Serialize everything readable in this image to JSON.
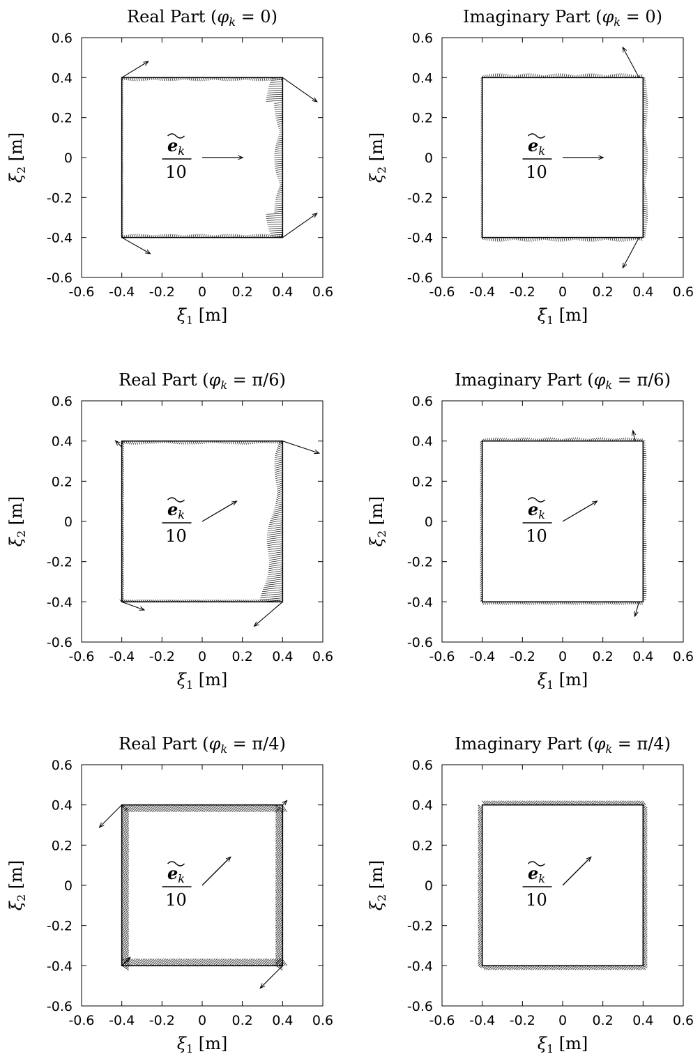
{
  "chart_data": [
    {
      "type": "quiver",
      "title_prefix": "Real Part (",
      "title_phi": "φ",
      "title_sub": "k",
      "title_eq": " = 0)",
      "xlabel_sym": "ξ",
      "xlabel_sub": "1",
      "xlabel_unit": " [m]",
      "ylabel_sym": "ξ",
      "ylabel_sub": "2",
      "ylabel_unit": " [m]",
      "xlim": [
        -0.6,
        0.6
      ],
      "ylim": [
        -0.6,
        0.6
      ],
      "xticks": [
        "-0.6",
        "-0.4",
        "-0.2",
        "0",
        "0.2",
        "0.4",
        "0.6"
      ],
      "yticks": [
        "-0.6",
        "-0.4",
        "-0.2",
        "0",
        "0.2",
        "0.4",
        "0.6"
      ],
      "annotation_top": "e",
      "annotation_sub": "k",
      "annotation_bottom": "10",
      "incident_arrow": {
        "x1": 0.0,
        "y1": 0.0,
        "x2": 0.2,
        "y2": 0.0
      },
      "boundary": {
        "x": [
          -0.4,
          0.4
        ],
        "y": [
          -0.4,
          0.4
        ]
      },
      "corner_arrows": [
        {
          "x1": -0.4,
          "y1": 0.4,
          "x2": -0.27,
          "y2": 0.48
        },
        {
          "x1": 0.4,
          "y1": 0.4,
          "x2": 0.57,
          "y2": 0.28
        },
        {
          "x1": 0.4,
          "y1": -0.4,
          "x2": 0.57,
          "y2": -0.28
        },
        {
          "x1": -0.4,
          "y1": -0.4,
          "x2": -0.26,
          "y2": -0.48
        }
      ],
      "edge_style": "real0"
    },
    {
      "type": "quiver",
      "title_prefix": "Imaginary Part (",
      "title_phi": "φ",
      "title_sub": "k",
      "title_eq": " = 0)",
      "xlabel_sym": "ξ",
      "xlabel_sub": "1",
      "xlabel_unit": " [m]",
      "ylabel_sym": "ξ",
      "ylabel_sub": "2",
      "ylabel_unit": " [m]",
      "xlim": [
        -0.6,
        0.6
      ],
      "ylim": [
        -0.6,
        0.6
      ],
      "xticks": [
        "-0.6",
        "-0.4",
        "-0.2",
        "0",
        "0.2",
        "0.4",
        "0.6"
      ],
      "yticks": [
        "-0.6",
        "-0.4",
        "-0.2",
        "0",
        "0.2",
        "0.4",
        "0.6"
      ],
      "annotation_top": "e",
      "annotation_sub": "k",
      "annotation_bottom": "10",
      "incident_arrow": {
        "x1": 0.0,
        "y1": 0.0,
        "x2": 0.2,
        "y2": 0.0
      },
      "boundary": {
        "x": [
          -0.4,
          0.4
        ],
        "y": [
          -0.4,
          0.4
        ]
      },
      "corner_arrows": [
        {
          "x1": 0.38,
          "y1": 0.4,
          "x2": 0.3,
          "y2": 0.55
        },
        {
          "x1": 0.38,
          "y1": -0.4,
          "x2": 0.3,
          "y2": -0.55
        }
      ],
      "edge_style": "imag0"
    },
    {
      "type": "quiver",
      "title_prefix": "Real Part (",
      "title_phi": "φ",
      "title_sub": "k",
      "title_eq": " = π/6)",
      "xlabel_sym": "ξ",
      "xlabel_sub": "1",
      "xlabel_unit": " [m]",
      "ylabel_sym": "ξ",
      "ylabel_sub": "2",
      "ylabel_unit": " [m]",
      "xlim": [
        -0.6,
        0.6
      ],
      "ylim": [
        -0.6,
        0.6
      ],
      "xticks": [
        "-0.6",
        "-0.4",
        "-0.2",
        "0",
        "0.2",
        "0.4",
        "0.6"
      ],
      "yticks": [
        "-0.6",
        "-0.4",
        "-0.2",
        "0",
        "0.2",
        "0.4",
        "0.6"
      ],
      "annotation_top": "e",
      "annotation_sub": "k",
      "annotation_bottom": "10",
      "incident_arrow": {
        "x1": 0.0,
        "y1": 0.0,
        "x2": 0.17,
        "y2": 0.1
      },
      "boundary": {
        "x": [
          -0.4,
          0.4
        ],
        "y": [
          -0.4,
          0.4
        ]
      },
      "corner_arrows": [
        {
          "x1": 0.4,
          "y1": 0.4,
          "x2": 0.58,
          "y2": 0.34
        },
        {
          "x1": 0.4,
          "y1": -0.4,
          "x2": 0.26,
          "y2": -0.52
        },
        {
          "x1": -0.4,
          "y1": -0.4,
          "x2": -0.29,
          "y2": -0.44
        },
        {
          "x1": -0.4,
          "y1": 0.37,
          "x2": -0.43,
          "y2": 0.4
        }
      ],
      "edge_style": "real30"
    },
    {
      "type": "quiver",
      "title_prefix": "Imaginary Part (",
      "title_phi": "φ",
      "title_sub": "k",
      "title_eq": " = π/6)",
      "xlabel_sym": "ξ",
      "xlabel_sub": "1",
      "xlabel_unit": " [m]",
      "ylabel_sym": "ξ",
      "ylabel_sub": "2",
      "ylabel_unit": " [m]",
      "xlim": [
        -0.6,
        0.6
      ],
      "ylim": [
        -0.6,
        0.6
      ],
      "xticks": [
        "-0.6",
        "-0.4",
        "-0.2",
        "0",
        "0.2",
        "0.4",
        "0.6"
      ],
      "yticks": [
        "-0.6",
        "-0.4",
        "-0.2",
        "0",
        "0.2",
        "0.4",
        "0.6"
      ],
      "annotation_top": "e",
      "annotation_sub": "k",
      "annotation_bottom": "10",
      "incident_arrow": {
        "x1": 0.0,
        "y1": 0.0,
        "x2": 0.17,
        "y2": 0.1
      },
      "boundary": {
        "x": [
          -0.4,
          0.4
        ],
        "y": [
          -0.4,
          0.4
        ]
      },
      "corner_arrows": [
        {
          "x1": 0.36,
          "y1": 0.4,
          "x2": 0.35,
          "y2": 0.45
        },
        {
          "x1": 0.38,
          "y1": -0.4,
          "x2": 0.36,
          "y2": -0.47
        }
      ],
      "edge_style": "imag30"
    },
    {
      "type": "quiver",
      "title_prefix": "Real Part (",
      "title_phi": "φ",
      "title_sub": "k",
      "title_eq": " = π/4)",
      "xlabel_sym": "ξ",
      "xlabel_sub": "1",
      "xlabel_unit": " [m]",
      "ylabel_sym": "ξ",
      "ylabel_sub": "2",
      "ylabel_unit": " [m]",
      "xlim": [
        -0.6,
        0.6
      ],
      "ylim": [
        -0.6,
        0.6
      ],
      "xticks": [
        "-0.6",
        "-0.4",
        "-0.2",
        "0",
        "0.2",
        "0.4",
        "0.6"
      ],
      "yticks": [
        "-0.6",
        "-0.4",
        "-0.2",
        "0",
        "0.2",
        "0.4",
        "0.6"
      ],
      "annotation_top": "e",
      "annotation_sub": "k",
      "annotation_bottom": "10",
      "incident_arrow": {
        "x1": 0.0,
        "y1": 0.0,
        "x2": 0.14,
        "y2": 0.14
      },
      "boundary": {
        "x": [
          -0.4,
          0.4
        ],
        "y": [
          -0.4,
          0.4
        ]
      },
      "corner_arrows": [
        {
          "x1": -0.4,
          "y1": 0.4,
          "x2": -0.51,
          "y2": 0.29
        },
        {
          "x1": 0.4,
          "y1": 0.4,
          "x2": 0.42,
          "y2": 0.42
        },
        {
          "x1": 0.4,
          "y1": -0.4,
          "x2": 0.29,
          "y2": -0.51
        },
        {
          "x1": -0.4,
          "y1": -0.4,
          "x2": -0.36,
          "y2": -0.36
        }
      ],
      "edge_style": "real45"
    },
    {
      "type": "quiver",
      "title_prefix": "Imaginary Part (",
      "title_phi": "φ",
      "title_sub": "k",
      "title_eq": " = π/4)",
      "xlabel_sym": "ξ",
      "xlabel_sub": "1",
      "xlabel_unit": " [m]",
      "ylabel_sym": "ξ",
      "ylabel_sub": "2",
      "ylabel_unit": " [m]",
      "xlim": [
        -0.6,
        0.6
      ],
      "ylim": [
        -0.6,
        0.6
      ],
      "xticks": [
        "-0.6",
        "-0.4",
        "-0.2",
        "0",
        "0.2",
        "0.4",
        "0.6"
      ],
      "yticks": [
        "-0.6",
        "-0.4",
        "-0.2",
        "0",
        "0.2",
        "0.4",
        "0.6"
      ],
      "annotation_top": "e",
      "annotation_sub": "k",
      "annotation_bottom": "10",
      "incident_arrow": {
        "x1": 0.0,
        "y1": 0.0,
        "x2": 0.14,
        "y2": 0.14
      },
      "boundary": {
        "x": [
          -0.4,
          0.4
        ],
        "y": [
          -0.4,
          0.4
        ]
      },
      "corner_arrows": [],
      "edge_style": "imag45"
    }
  ]
}
